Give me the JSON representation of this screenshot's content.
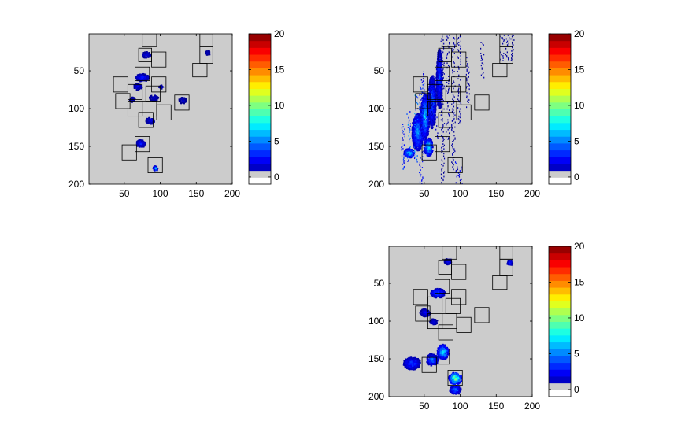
{
  "figure": {
    "background": "#ffffff"
  },
  "chart_data": [
    {
      "type": "heatmap",
      "panel": "top-left",
      "title": "",
      "xlabel": "",
      "ylabel": "",
      "xlim": [
        1,
        200
      ],
      "ylim": [
        200,
        1
      ],
      "xticks": [
        50,
        100,
        150,
        200
      ],
      "yticks": [
        50,
        100,
        150,
        200
      ],
      "background_color": "#cccccc",
      "colorbar": {
        "range": [
          -1,
          20
        ],
        "ticks": [
          0,
          5,
          10,
          15,
          20
        ],
        "colormap": "jet"
      },
      "boxes": [
        [
          75,
          1,
          95,
          18
        ],
        [
          155,
          1,
          173,
          18
        ],
        [
          155,
          18,
          173,
          40
        ],
        [
          70,
          20,
          88,
          38
        ],
        [
          88,
          25,
          108,
          45
        ],
        [
          145,
          40,
          165,
          58
        ],
        [
          65,
          45,
          85,
          63
        ],
        [
          35,
          58,
          55,
          78
        ],
        [
          88,
          58,
          108,
          78
        ],
        [
          55,
          68,
          75,
          88
        ],
        [
          80,
          70,
          100,
          90
        ],
        [
          38,
          80,
          58,
          100
        ],
        [
          55,
          90,
          75,
          110
        ],
        [
          75,
          90,
          95,
          110
        ],
        [
          95,
          95,
          115,
          115
        ],
        [
          120,
          82,
          140,
          102
        ],
        [
          70,
          105,
          90,
          125
        ],
        [
          65,
          137,
          85,
          157
        ],
        [
          47,
          148,
          67,
          168
        ],
        [
          83,
          165,
          103,
          185
        ]
      ],
      "blobs": [
        [
          80,
          28,
          6,
          4,
          3
        ],
        [
          74,
          58,
          9,
          5,
          4
        ],
        [
          68,
          70,
          6,
          4,
          3
        ],
        [
          60,
          87,
          4,
          3,
          2
        ],
        [
          90,
          85,
          6,
          4,
          2
        ],
        [
          85,
          115,
          6,
          4,
          3
        ],
        [
          130,
          88,
          5,
          4,
          2
        ],
        [
          72,
          145,
          6,
          5,
          4
        ],
        [
          92,
          178,
          3,
          3,
          8
        ],
        [
          165,
          25,
          3,
          3,
          2
        ],
        [
          100,
          70,
          3,
          2,
          2
        ]
      ]
    },
    {
      "type": "heatmap",
      "panel": "top-right",
      "title": "",
      "xlabel": "",
      "ylabel": "",
      "xlim": [
        1,
        200
      ],
      "ylim": [
        200,
        1
      ],
      "xticks": [
        50,
        100,
        150,
        200
      ],
      "yticks": [
        50,
        100,
        150,
        200
      ],
      "background_color": "#cccccc",
      "colorbar": {
        "range": [
          -1,
          20
        ],
        "ticks": [
          0,
          5,
          10,
          15,
          20
        ],
        "colormap": "jet"
      },
      "boxes": [
        [
          75,
          1,
          95,
          18
        ],
        [
          155,
          1,
          173,
          18
        ],
        [
          155,
          18,
          173,
          40
        ],
        [
          70,
          20,
          88,
          38
        ],
        [
          88,
          25,
          108,
          45
        ],
        [
          145,
          40,
          165,
          58
        ],
        [
          65,
          45,
          85,
          63
        ],
        [
          35,
          58,
          55,
          78
        ],
        [
          88,
          58,
          108,
          78
        ],
        [
          55,
          68,
          75,
          88
        ],
        [
          80,
          70,
          100,
          90
        ],
        [
          38,
          80,
          58,
          100
        ],
        [
          55,
          90,
          75,
          110
        ],
        [
          75,
          90,
          95,
          110
        ],
        [
          95,
          95,
          115,
          115
        ],
        [
          120,
          82,
          140,
          102
        ],
        [
          70,
          105,
          90,
          125
        ],
        [
          65,
          137,
          85,
          157
        ],
        [
          47,
          148,
          67,
          168
        ],
        [
          83,
          165,
          103,
          185
        ]
      ],
      "blobs": [
        [
          28,
          158,
          7,
          6,
          10
        ],
        [
          40,
          130,
          8,
          25,
          7
        ],
        [
          50,
          110,
          6,
          30,
          8
        ],
        [
          60,
          90,
          5,
          35,
          6
        ],
        [
          70,
          60,
          4,
          40,
          5
        ],
        [
          55,
          150,
          6,
          12,
          9
        ]
      ],
      "streaks": [
        [
          75,
          2,
          200,
          1
        ],
        [
          82,
          2,
          140,
          1
        ],
        [
          90,
          2,
          180,
          1
        ],
        [
          98,
          2,
          120,
          1
        ],
        [
          110,
          30,
          100,
          1
        ],
        [
          130,
          10,
          60,
          1
        ],
        [
          158,
          2,
          40,
          1
        ],
        [
          165,
          2,
          35,
          1
        ],
        [
          172,
          2,
          40,
          1
        ],
        [
          48,
          50,
          160,
          4
        ],
        [
          45,
          70,
          210,
          4
        ],
        [
          38,
          80,
          170,
          6
        ],
        [
          28,
          100,
          170,
          6
        ],
        [
          20,
          120,
          180,
          4
        ],
        [
          60,
          60,
          120,
          2
        ],
        [
          66,
          50,
          140,
          2
        ],
        [
          95,
          170,
          200,
          3
        ],
        [
          100,
          175,
          200,
          3
        ]
      ]
    },
    {
      "type": "heatmap",
      "panel": "bottom-right",
      "title": "",
      "xlabel": "",
      "ylabel": "",
      "xlim": [
        1,
        200
      ],
      "ylim": [
        200,
        1
      ],
      "xticks": [
        50,
        100,
        150,
        200
      ],
      "yticks": [
        50,
        100,
        150,
        200
      ],
      "background_color": "#cccccc",
      "colorbar": {
        "range": [
          -1,
          20
        ],
        "ticks": [
          0,
          5,
          10,
          15,
          20
        ],
        "colormap": "jet"
      },
      "boxes": [
        [
          75,
          1,
          95,
          18
        ],
        [
          155,
          1,
          173,
          18
        ],
        [
          155,
          18,
          173,
          40
        ],
        [
          70,
          20,
          88,
          38
        ],
        [
          88,
          25,
          108,
          45
        ],
        [
          145,
          40,
          165,
          58
        ],
        [
          65,
          45,
          85,
          63
        ],
        [
          35,
          58,
          55,
          78
        ],
        [
          88,
          58,
          108,
          78
        ],
        [
          55,
          68,
          75,
          88
        ],
        [
          80,
          70,
          100,
          90
        ],
        [
          38,
          80,
          58,
          100
        ],
        [
          55,
          90,
          75,
          110
        ],
        [
          75,
          90,
          95,
          110
        ],
        [
          95,
          95,
          115,
          115
        ],
        [
          120,
          82,
          140,
          102
        ],
        [
          70,
          105,
          90,
          125
        ],
        [
          65,
          137,
          85,
          157
        ],
        [
          47,
          148,
          67,
          168
        ],
        [
          83,
          165,
          103,
          185
        ]
      ],
      "blobs": [
        [
          82,
          20,
          5,
          4,
          4
        ],
        [
          168,
          22,
          4,
          3,
          4
        ],
        [
          68,
          62,
          10,
          6,
          6
        ],
        [
          50,
          88,
          7,
          5,
          3
        ],
        [
          62,
          100,
          5,
          4,
          3
        ],
        [
          75,
          140,
          8,
          10,
          9
        ],
        [
          60,
          150,
          8,
          8,
          6
        ],
        [
          32,
          155,
          12,
          8,
          5
        ],
        [
          92,
          175,
          9,
          8,
          13
        ],
        [
          92,
          190,
          8,
          6,
          6
        ]
      ]
    }
  ]
}
